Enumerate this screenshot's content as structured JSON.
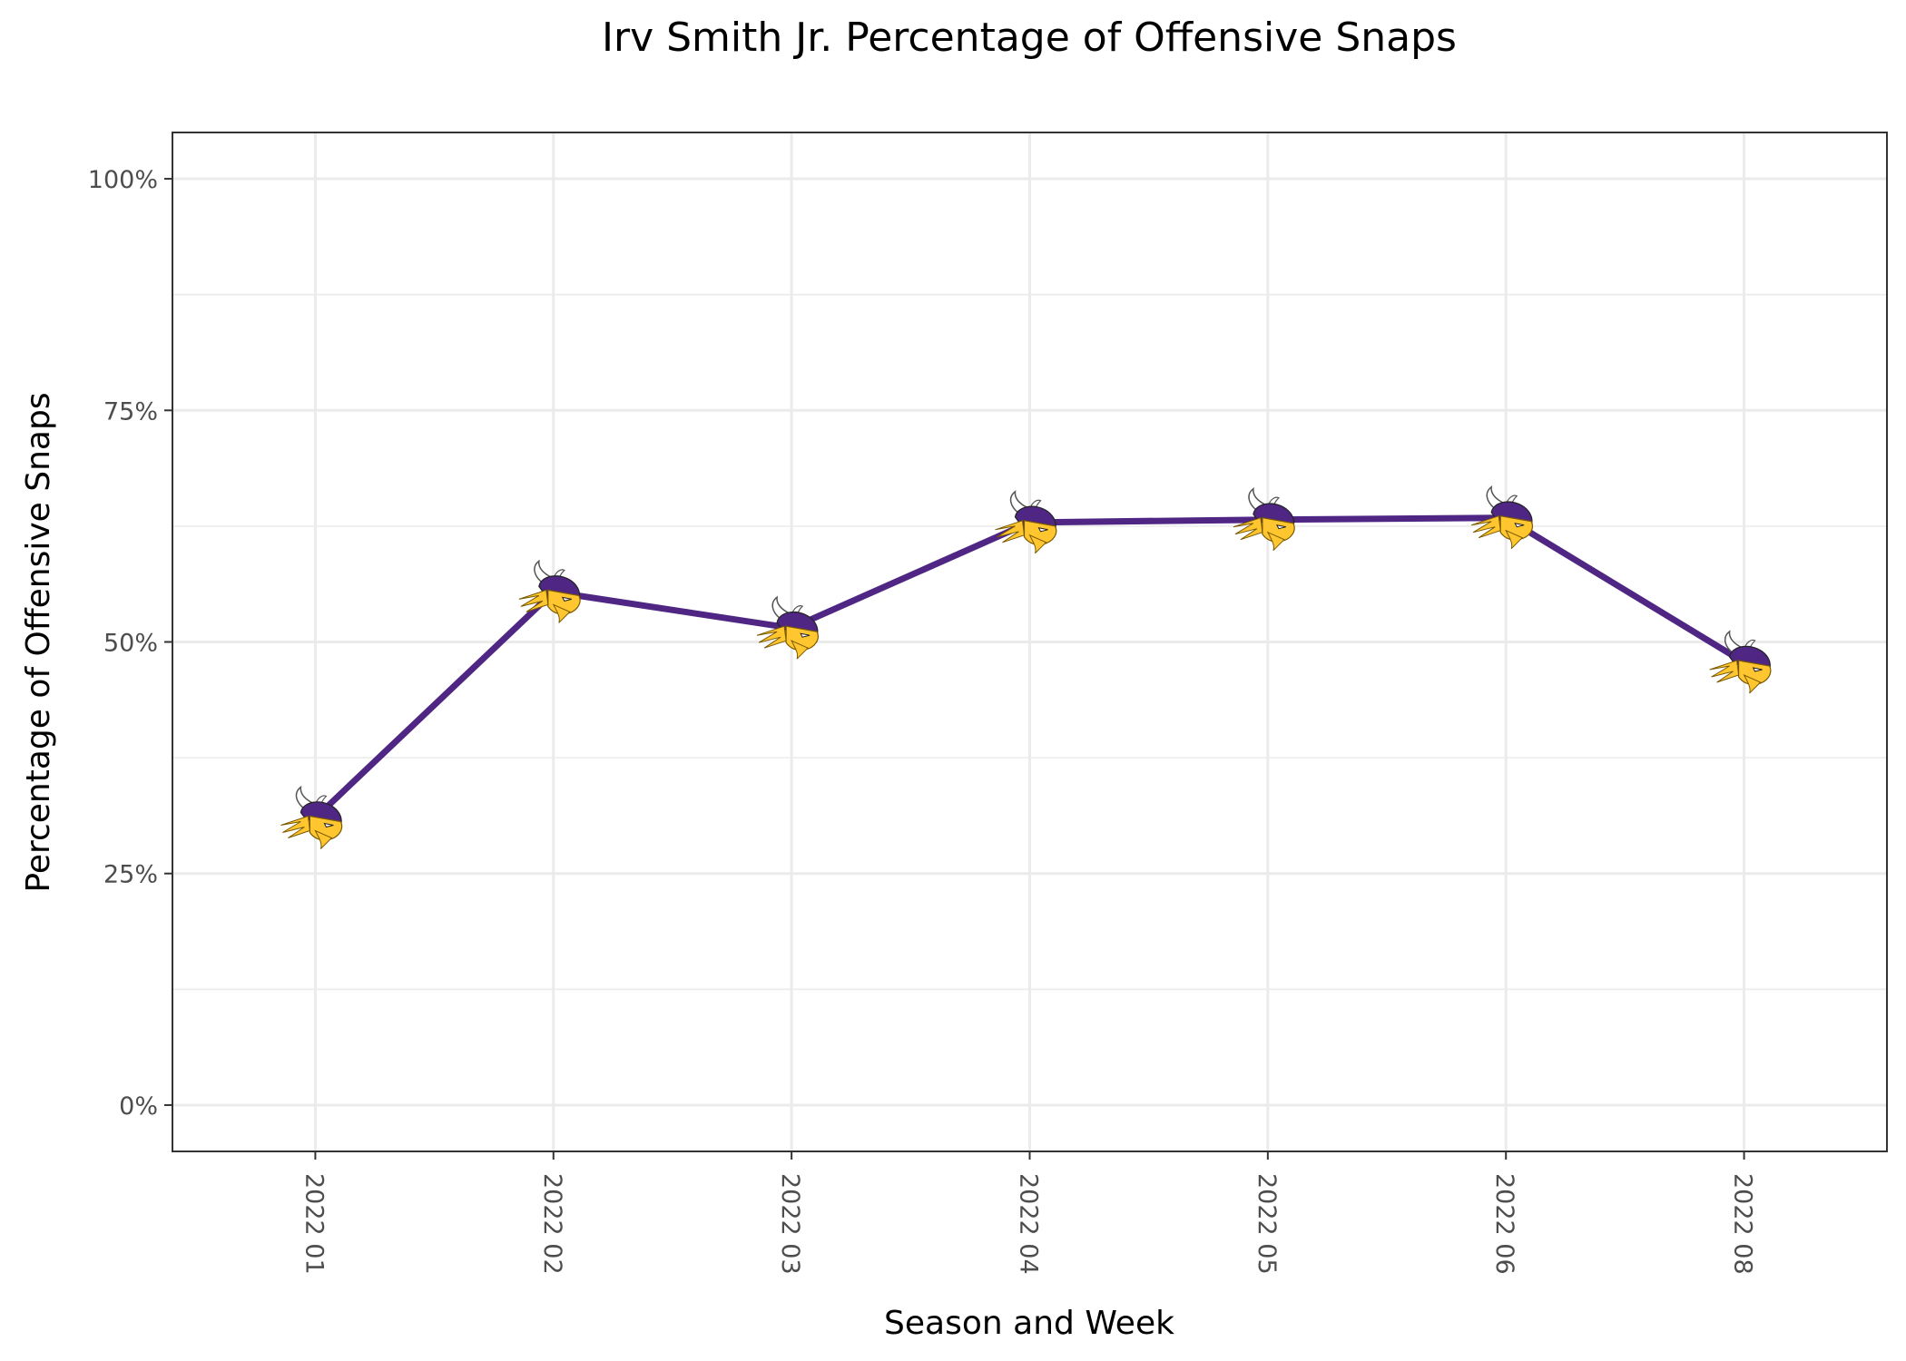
{
  "chart_data": {
    "type": "line",
    "title": "Irv Smith Jr. Percentage of Offensive Snaps",
    "xlabel": "Season and Week",
    "ylabel": "Percentage of Offensive Snaps",
    "categories": [
      "2022 01",
      "2022 02",
      "2022 03",
      "2022 04",
      "2022 05",
      "2022 06",
      "2022 08"
    ],
    "series": [
      {
        "values": [
          0.31,
          0.554,
          0.515,
          0.629,
          0.632,
          0.634,
          0.478
        ]
      }
    ],
    "ylim": [
      -0.05,
      1.05
    ],
    "yticks": [
      0,
      0.25,
      0.5,
      0.75,
      1.0
    ],
    "ytick_labels": [
      "0%",
      "25%",
      "50%",
      "75%",
      "100%"
    ],
    "grid": true,
    "marker_icon": "vikings-logo-icon",
    "colors": {
      "line": "#4f2683",
      "logo_gold": "#ffc62f",
      "logo_purple": "#4f2683"
    }
  }
}
